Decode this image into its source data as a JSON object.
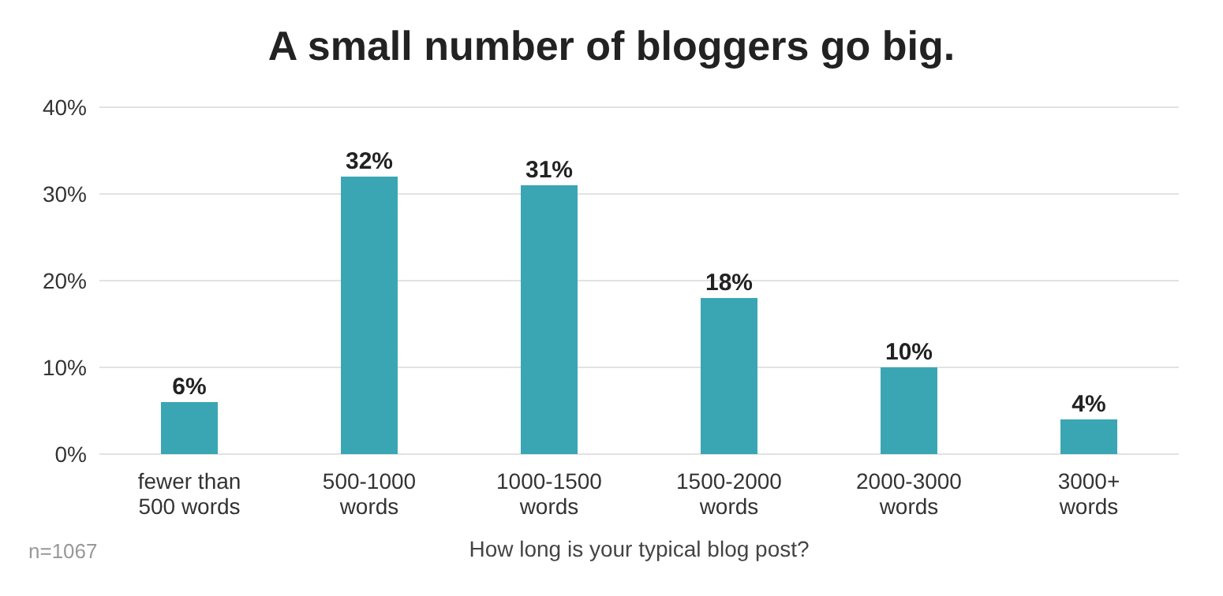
{
  "chart_data": {
    "type": "bar",
    "title": "A small number of bloggers go big.",
    "xlabel": "How long is your typical blog post?",
    "categories": [
      "fewer than 500 words",
      "500-1000 words",
      "1000-1500 words",
      "1500-2000 words",
      "2000-3000 words",
      "3000+ words"
    ],
    "values": [
      6,
      32,
      31,
      18,
      10,
      4
    ],
    "value_labels": [
      "6%",
      "32%",
      "31%",
      "18%",
      "10%",
      "4%"
    ],
    "color": "#3aa6b4",
    "ylim": [
      0,
      40
    ],
    "yticks": [
      {
        "value": 0,
        "label": "0%"
      },
      {
        "value": 10,
        "label": "10%"
      },
      {
        "value": 20,
        "label": "20%"
      },
      {
        "value": 30,
        "label": "30%"
      },
      {
        "value": 40,
        "label": "40%"
      }
    ],
    "grid": "y",
    "annotations": [
      "n=1067"
    ]
  }
}
